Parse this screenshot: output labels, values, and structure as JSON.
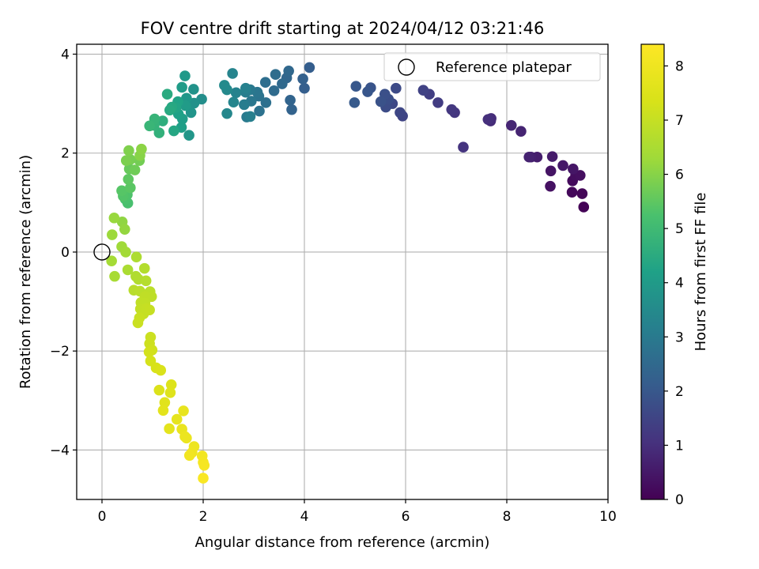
{
  "chart_data": {
    "type": "scatter",
    "title": "FOV centre drift starting at 2024/04/12 03:21:46",
    "xlabel": "Angular distance from reference (arcmin)",
    "ylabel": "Rotation from reference (arcmin)",
    "xlim": [
      -0.5,
      10
    ],
    "ylim": [
      -5,
      4.2
    ],
    "xticks": [
      0,
      2,
      4,
      6,
      8,
      10
    ],
    "xtick_labels": [
      "0",
      "2",
      "4",
      "6",
      "8",
      "10"
    ],
    "yticks": [
      -4,
      -2,
      0,
      2,
      4
    ],
    "ytick_labels": [
      "−4",
      "−2",
      "0",
      "2",
      "4"
    ],
    "grid": true,
    "legend": {
      "position": "top-right",
      "entries": [
        "Reference platepar"
      ]
    },
    "colorbar": {
      "label": "Hours from first FF file",
      "range": [
        0,
        8.4
      ],
      "ticks": [
        0,
        1,
        2,
        3,
        4,
        5,
        6,
        7,
        8
      ],
      "tick_labels": [
        "0",
        "1",
        "2",
        "3",
        "4",
        "5",
        "6",
        "7",
        "8"
      ],
      "colormap": "viridis"
    },
    "reference_point": {
      "x": 0,
      "y": 0,
      "label": "Reference platepar"
    },
    "series": [
      {
        "points": [
          [
            9.52,
            0.91,
            0.05
          ],
          [
            9.49,
            1.18,
            0.1
          ],
          [
            9.29,
            1.21,
            0.15
          ],
          [
            9.3,
            1.44,
            0.2
          ],
          [
            9.36,
            1.55,
            0.25
          ],
          [
            9.45,
            1.55,
            0.3
          ],
          [
            8.86,
            1.33,
            0.35
          ],
          [
            8.87,
            1.64,
            0.4
          ],
          [
            9.31,
            1.68,
            0.45
          ],
          [
            9.11,
            1.75,
            0.5
          ],
          [
            8.9,
            1.93,
            0.55
          ],
          [
            8.6,
            1.92,
            0.6
          ],
          [
            8.48,
            1.92,
            0.65
          ],
          [
            8.44,
            1.92,
            0.7
          ],
          [
            8.28,
            2.44,
            0.75
          ],
          [
            8.09,
            2.56,
            0.8
          ],
          [
            7.68,
            2.65,
            0.9
          ],
          [
            7.69,
            2.7,
            0.95
          ],
          [
            7.63,
            2.68,
            1.0
          ],
          [
            7.14,
            2.12,
            1.1
          ],
          [
            6.97,
            2.82,
            1.15
          ],
          [
            6.91,
            2.88,
            1.2
          ],
          [
            6.64,
            3.02,
            1.3
          ],
          [
            6.47,
            3.19,
            1.35
          ],
          [
            6.35,
            3.27,
            1.45
          ],
          [
            5.94,
            2.75,
            1.5
          ],
          [
            5.89,
            2.82,
            1.55
          ],
          [
            5.74,
            3.0,
            1.6
          ],
          [
            5.81,
            3.31,
            1.65
          ],
          [
            5.61,
            2.93,
            1.7
          ],
          [
            5.66,
            3.09,
            1.75
          ],
          [
            5.59,
            3.19,
            1.8
          ],
          [
            5.51,
            3.04,
            1.85
          ],
          [
            5.31,
            3.32,
            1.9
          ],
          [
            5.25,
            3.24,
            1.95
          ],
          [
            5.02,
            3.35,
            2.0
          ],
          [
            4.99,
            3.02,
            2.05
          ],
          [
            4.1,
            3.73,
            2.15
          ],
          [
            4.0,
            3.31,
            2.2
          ],
          [
            3.97,
            3.5,
            2.25
          ],
          [
            3.75,
            2.88,
            2.3
          ],
          [
            3.72,
            3.07,
            2.35
          ],
          [
            3.65,
            3.52,
            2.4
          ],
          [
            3.69,
            3.66,
            2.45
          ],
          [
            3.56,
            3.4,
            2.5
          ],
          [
            3.4,
            3.26,
            2.55
          ],
          [
            3.43,
            3.59,
            2.6
          ],
          [
            3.23,
            3.43,
            2.65
          ],
          [
            3.24,
            3.02,
            2.7
          ],
          [
            3.11,
            2.85,
            2.75
          ],
          [
            3.1,
            3.15,
            2.8
          ],
          [
            3.07,
            3.23,
            2.85
          ],
          [
            2.95,
            3.05,
            2.9
          ],
          [
            2.93,
            3.28,
            2.95
          ],
          [
            2.86,
            2.73,
            3.0
          ],
          [
            2.81,
            2.98,
            3.05
          ],
          [
            2.84,
            3.23,
            3.1
          ],
          [
            2.93,
            2.74,
            3.15
          ],
          [
            2.84,
            3.31,
            3.2
          ],
          [
            2.65,
            3.22,
            3.25
          ],
          [
            2.58,
            3.61,
            3.3
          ],
          [
            2.6,
            3.03,
            3.35
          ],
          [
            2.47,
            2.8,
            3.4
          ],
          [
            2.47,
            3.28,
            3.45
          ],
          [
            2.42,
            3.37,
            3.5
          ],
          [
            1.97,
            3.09,
            3.6
          ],
          [
            1.82,
            3.01,
            3.7
          ],
          [
            1.81,
            3.29,
            3.75
          ],
          [
            1.76,
            2.82,
            3.8
          ],
          [
            1.72,
            2.36,
            3.85
          ],
          [
            1.67,
            3.11,
            3.9
          ],
          [
            1.64,
            3.56,
            3.95
          ],
          [
            1.65,
            2.96,
            4.0
          ],
          [
            1.58,
            3.33,
            4.05
          ],
          [
            1.59,
            2.69,
            4.1
          ],
          [
            1.57,
            2.52,
            4.15
          ],
          [
            1.51,
            2.79,
            4.2
          ],
          [
            1.5,
            3.04,
            4.25
          ],
          [
            1.46,
            2.92,
            4.3
          ],
          [
            1.42,
            2.45,
            4.35
          ],
          [
            1.38,
            2.93,
            4.4
          ],
          [
            1.34,
            2.87,
            4.45
          ],
          [
            1.29,
            3.19,
            4.5
          ],
          [
            1.2,
            2.65,
            4.6
          ],
          [
            1.13,
            2.41,
            4.7
          ],
          [
            1.03,
            2.56,
            4.75
          ],
          [
            1.04,
            2.69,
            4.8
          ],
          [
            0.94,
            2.55,
            4.85
          ],
          [
            0.51,
            0.99,
            5.2
          ],
          [
            0.46,
            1.07,
            5.25
          ],
          [
            0.5,
            1.16,
            5.3
          ],
          [
            0.42,
            1.13,
            5.35
          ],
          [
            0.39,
            1.24,
            5.4
          ],
          [
            0.56,
            1.3,
            5.45
          ],
          [
            0.52,
            1.47,
            5.5
          ],
          [
            0.54,
            1.68,
            5.6
          ],
          [
            0.65,
            1.66,
            5.7
          ],
          [
            0.74,
            1.85,
            5.75
          ],
          [
            0.56,
            1.87,
            5.8
          ],
          [
            0.48,
            1.85,
            5.85
          ],
          [
            0.53,
            2.05,
            5.9
          ],
          [
            0.75,
            1.95,
            6.0
          ],
          [
            0.78,
            2.08,
            6.05
          ],
          [
            0.4,
            0.61,
            6.1
          ],
          [
            0.45,
            0.46,
            6.15
          ],
          [
            0.24,
            0.69,
            6.2
          ],
          [
            0.2,
            0.35,
            6.25
          ],
          [
            0.39,
            0.11,
            6.3
          ],
          [
            0.47,
            0.0,
            6.35
          ],
          [
            0.19,
            -0.18,
            6.4
          ],
          [
            0.25,
            -0.49,
            6.45
          ],
          [
            0.51,
            -0.36,
            6.5
          ],
          [
            0.68,
            -0.1,
            6.55
          ],
          [
            0.67,
            -0.49,
            6.6
          ],
          [
            0.72,
            -0.55,
            6.62
          ],
          [
            0.84,
            -0.33,
            6.65
          ],
          [
            0.87,
            -0.58,
            6.7
          ],
          [
            0.63,
            -0.77,
            6.75
          ],
          [
            0.75,
            -0.79,
            6.78
          ],
          [
            0.95,
            -0.8,
            6.8
          ],
          [
            0.91,
            -0.85,
            6.82
          ],
          [
            0.98,
            -0.9,
            6.85
          ],
          [
            0.85,
            -0.9,
            6.88
          ],
          [
            0.77,
            -1.02,
            6.9
          ],
          [
            0.85,
            -1.03,
            6.92
          ],
          [
            0.76,
            -1.15,
            6.95
          ],
          [
            0.82,
            -1.25,
            6.98
          ],
          [
            0.88,
            -1.14,
            7.0
          ],
          [
            0.94,
            -1.17,
            7.02
          ],
          [
            0.74,
            -1.33,
            7.05
          ],
          [
            0.71,
            -1.43,
            7.08
          ],
          [
            0.96,
            -1.72,
            7.1
          ],
          [
            0.94,
            -1.85,
            7.15
          ],
          [
            0.99,
            -1.98,
            7.2
          ],
          [
            0.93,
            -2.02,
            7.25
          ],
          [
            0.96,
            -2.2,
            7.3
          ],
          [
            1.07,
            -2.34,
            7.35
          ],
          [
            1.16,
            -2.39,
            7.4
          ],
          [
            1.13,
            -2.79,
            7.45
          ],
          [
            1.37,
            -2.68,
            7.5
          ],
          [
            1.35,
            -2.84,
            7.55
          ],
          [
            1.24,
            -3.04,
            7.6
          ],
          [
            1.21,
            -3.2,
            7.65
          ],
          [
            1.33,
            -3.57,
            7.7
          ],
          [
            1.48,
            -3.38,
            7.75
          ],
          [
            1.61,
            -3.21,
            7.8
          ],
          [
            1.58,
            -3.58,
            7.85
          ],
          [
            1.67,
            -3.76,
            7.9
          ],
          [
            1.64,
            -3.73,
            7.92
          ],
          [
            1.82,
            -3.93,
            7.95
          ],
          [
            1.78,
            -4.05,
            8.0
          ],
          [
            1.73,
            -4.11,
            8.05
          ],
          [
            1.98,
            -4.12,
            8.1
          ],
          [
            2.0,
            -4.25,
            8.15
          ],
          [
            2.02,
            -4.31,
            8.2
          ],
          [
            2.0,
            -4.57,
            8.3
          ]
        ]
      }
    ]
  }
}
